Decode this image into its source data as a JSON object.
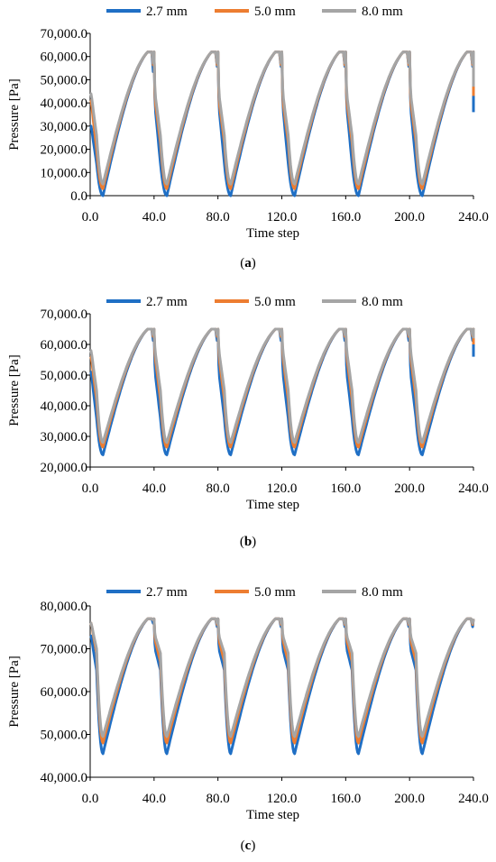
{
  "chart_data": [
    {
      "type": "line",
      "caption_letter": "a",
      "xlabel": "Time step",
      "ylabel": "Pressure [Pa]",
      "xlim": [
        0,
        240
      ],
      "ylim": [
        0,
        70000
      ],
      "x_ticks": [
        "0.0",
        "40.0",
        "80.0",
        "120.0",
        "160.0",
        "200.0",
        "240.0"
      ],
      "y_ticks": [
        "0.0",
        "10,000.0",
        "20,000.0",
        "30,000.0",
        "40,000.0",
        "50,000.0",
        "60,000.0",
        "70,000.0"
      ],
      "grid": false,
      "legend_position": "top",
      "period": 40,
      "series": [
        {
          "name": "2.7 mm",
          "color": "#1f6fc5",
          "peak": 62000,
          "min": 0,
          "drop": [
            38500,
            14000
          ],
          "start": [
            30000,
            14000
          ],
          "end": 36000
        },
        {
          "name": "5.0 mm",
          "color": "#ed7d31",
          "peak": 62000,
          "min": 3000,
          "drop": [
            41000,
            23000
          ],
          "start": [
            41000,
            20000
          ],
          "end": 43000
        },
        {
          "name": "8.0 mm",
          "color": "#a5a5a5",
          "peak": 62000,
          "min": 5000,
          "drop": [
            44000,
            26000
          ],
          "start": [
            44000,
            26000
          ],
          "end": 47000
        }
      ]
    },
    {
      "type": "line",
      "caption_letter": "b",
      "xlabel": "Time step",
      "ylabel": "Pressure [Pa]",
      "xlim": [
        0,
        240
      ],
      "ylim": [
        20000,
        70000
      ],
      "x_ticks": [
        "0.0",
        "40.0",
        "80.0",
        "120.0",
        "160.0",
        "200.0",
        "240.0"
      ],
      "y_ticks": [
        "20,000.0",
        "30,000.0",
        "40,000.0",
        "50,000.0",
        "60,000.0",
        "70,000.0"
      ],
      "grid": false,
      "legend_position": "top",
      "period": 40,
      "series": [
        {
          "name": "2.7 mm",
          "color": "#1f6fc5",
          "peak": 65000,
          "min": 24000,
          "drop": [
            51000,
            36000
          ],
          "start": [
            51000,
            36000
          ],
          "end": 56000
        },
        {
          "name": "5.0 mm",
          "color": "#ed7d31",
          "peak": 65000,
          "min": 26500,
          "drop": [
            56000,
            42000
          ],
          "start": [
            56000,
            42000
          ],
          "end": 60000
        },
        {
          "name": "8.0 mm",
          "color": "#a5a5a5",
          "peak": 65000,
          "min": 28000,
          "drop": [
            58000,
            45000
          ],
          "start": [
            58000,
            45000
          ],
          "end": 62000
        }
      ]
    },
    {
      "type": "line",
      "caption_letter": "c",
      "xlabel": "Time step",
      "ylabel": "Pressure [Pa]",
      "xlim": [
        0,
        240
      ],
      "ylim": [
        40000,
        80000
      ],
      "x_ticks": [
        "0.0",
        "40.0",
        "80.0",
        "120.0",
        "160.0",
        "200.0",
        "240.0"
      ],
      "y_ticks": [
        "40,000.0",
        "50,000.0",
        "60,000.0",
        "70,000.0",
        "80,000.0"
      ],
      "grid": false,
      "legend_position": "top",
      "period": 40,
      "series": [
        {
          "name": "2.7 mm",
          "color": "#1f6fc5",
          "peak": 77000,
          "min": 45500,
          "drop": [
            70000,
            65000
          ],
          "start": [
            73000,
            65000
          ],
          "end": 77000
        },
        {
          "name": "5.0 mm",
          "color": "#ed7d31",
          "peak": 77000,
          "min": 48000,
          "drop": [
            72000,
            67000
          ],
          "start": [
            76000,
            69000
          ],
          "end": 77000
        },
        {
          "name": "8.0 mm",
          "color": "#a5a5a5",
          "peak": 77000,
          "min": 49500,
          "drop": [
            73000,
            69000
          ],
          "start": [
            76000,
            70000
          ],
          "end": 77000
        }
      ]
    }
  ]
}
